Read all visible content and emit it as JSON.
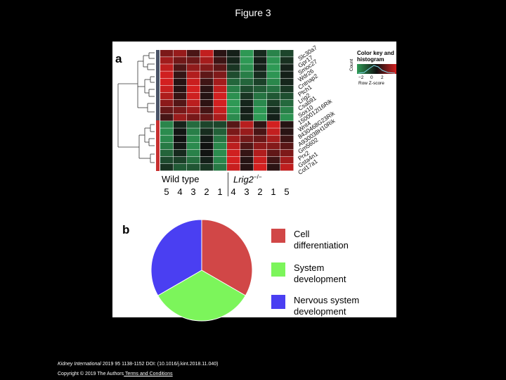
{
  "page": {
    "title": "Figure 3"
  },
  "panel_a": {
    "label": "a",
    "genes": [
      "Slc30a7",
      "Gpr17",
      "Smoc27",
      "Wdr26",
      "Cntnap2",
      "Ptch1",
      "Lrig2",
      "Csab91",
      "Sox10",
      "1500012l16Rik",
      "Wnt4",
      "8430468G23Rik",
      "A930038H10Rik",
      "Gm5602",
      "Prx2",
      "Gsta4n1",
      "Col17a1"
    ],
    "group_wt": "Wild type",
    "group_ko": "Lrig2",
    "group_ko_sup": "−/−",
    "samples_wt": [
      "5",
      "4",
      "3",
      "2",
      "1"
    ],
    "samples_ko": [
      "4",
      "3",
      "2",
      "1",
      "5"
    ],
    "color_key_title": "Color key and histogram",
    "color_key_ylabel": "Count",
    "color_key_ticks": [
      "−2",
      "0",
      "2"
    ],
    "color_key_xlabel": "Row Z-score",
    "colors": {
      "high": "#d42020",
      "low": "#2e9a55",
      "mid": "#111111"
    }
  },
  "panel_b": {
    "label": "b",
    "legend": [
      {
        "line1": "Cell",
        "line2": "differentiation",
        "color": "#d14747"
      },
      {
        "line1": "System",
        "line2": "development",
        "color": "#7cf55b"
      },
      {
        "line1": "Nervous system",
        "line2": "development",
        "color": "#4a3ff2"
      }
    ]
  },
  "chart_data": {
    "type": "pie",
    "title": "",
    "categories": [
      "Cell differentiation",
      "System development",
      "Nervous system development"
    ],
    "values": [
      33.3,
      33.3,
      33.3
    ]
  },
  "footer": {
    "journal": "Kidney International",
    "citation": " 2019 95 1138-1152 DOI: (10.1016/j.kint.2018.11.040) ",
    "copyright": "Copyright © 2019 The Authors",
    "link": " Terms and Conditions"
  }
}
